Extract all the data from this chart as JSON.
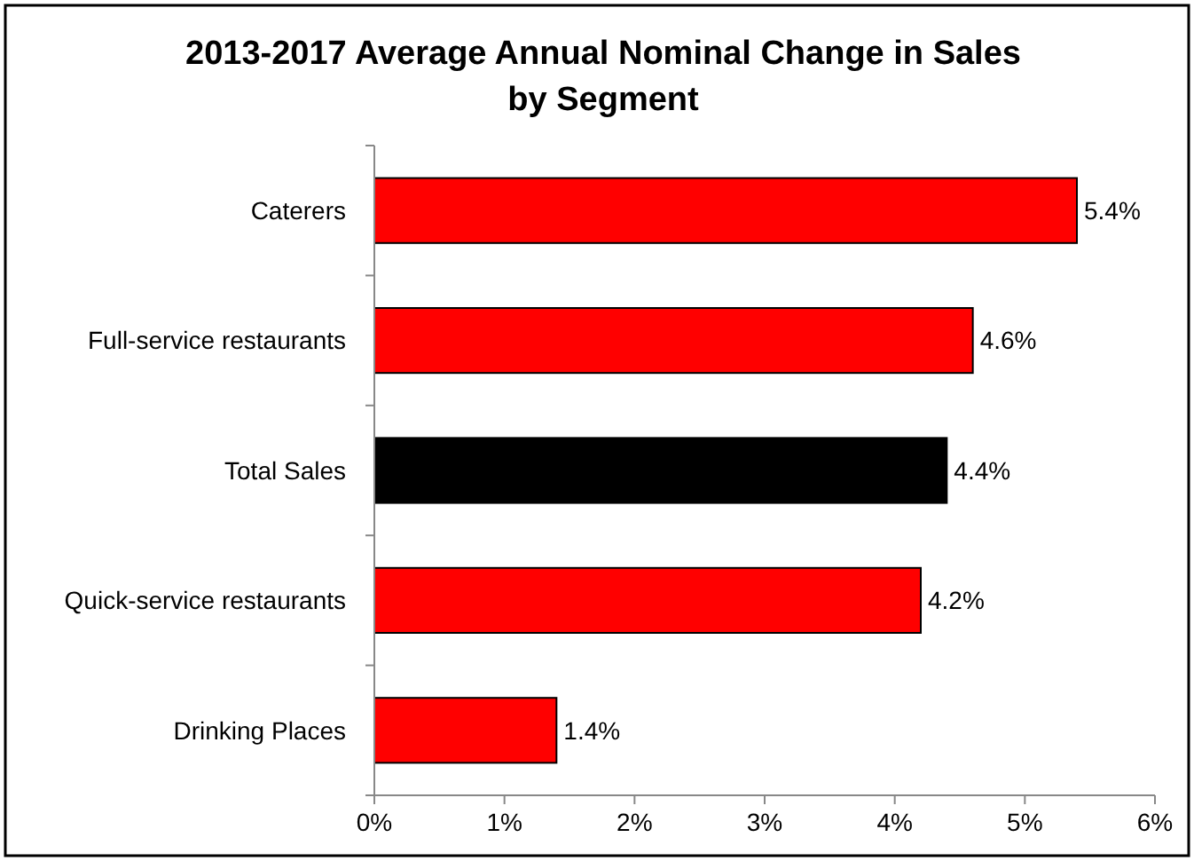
{
  "chart_data": {
    "type": "bar",
    "orientation": "horizontal",
    "title": "2013-2017 Average Annual Nominal Change in Sales\nby Segment",
    "categories": [
      "Caterers",
      "Full-service restaurants",
      "Total Sales",
      "Quick-service restaurants",
      "Drinking Places"
    ],
    "values": [
      5.4,
      4.6,
      4.4,
      4.2,
      1.4
    ],
    "colors": [
      "#ff0000",
      "#ff0000",
      "#000000",
      "#ff0000",
      "#ff0000"
    ],
    "value_labels": [
      "5.4%",
      "4.6%",
      "4.4%",
      "4.2%",
      "1.4%"
    ],
    "xlim": [
      0,
      6
    ],
    "xticks": [
      {
        "value": 0,
        "label": "0%"
      },
      {
        "value": 1,
        "label": "1%"
      },
      {
        "value": 2,
        "label": "2%"
      },
      {
        "value": 3,
        "label": "3%"
      },
      {
        "value": 4,
        "label": "4%"
      },
      {
        "value": 5,
        "label": "5%"
      },
      {
        "value": 6,
        "label": "6%"
      }
    ],
    "grid": false
  }
}
